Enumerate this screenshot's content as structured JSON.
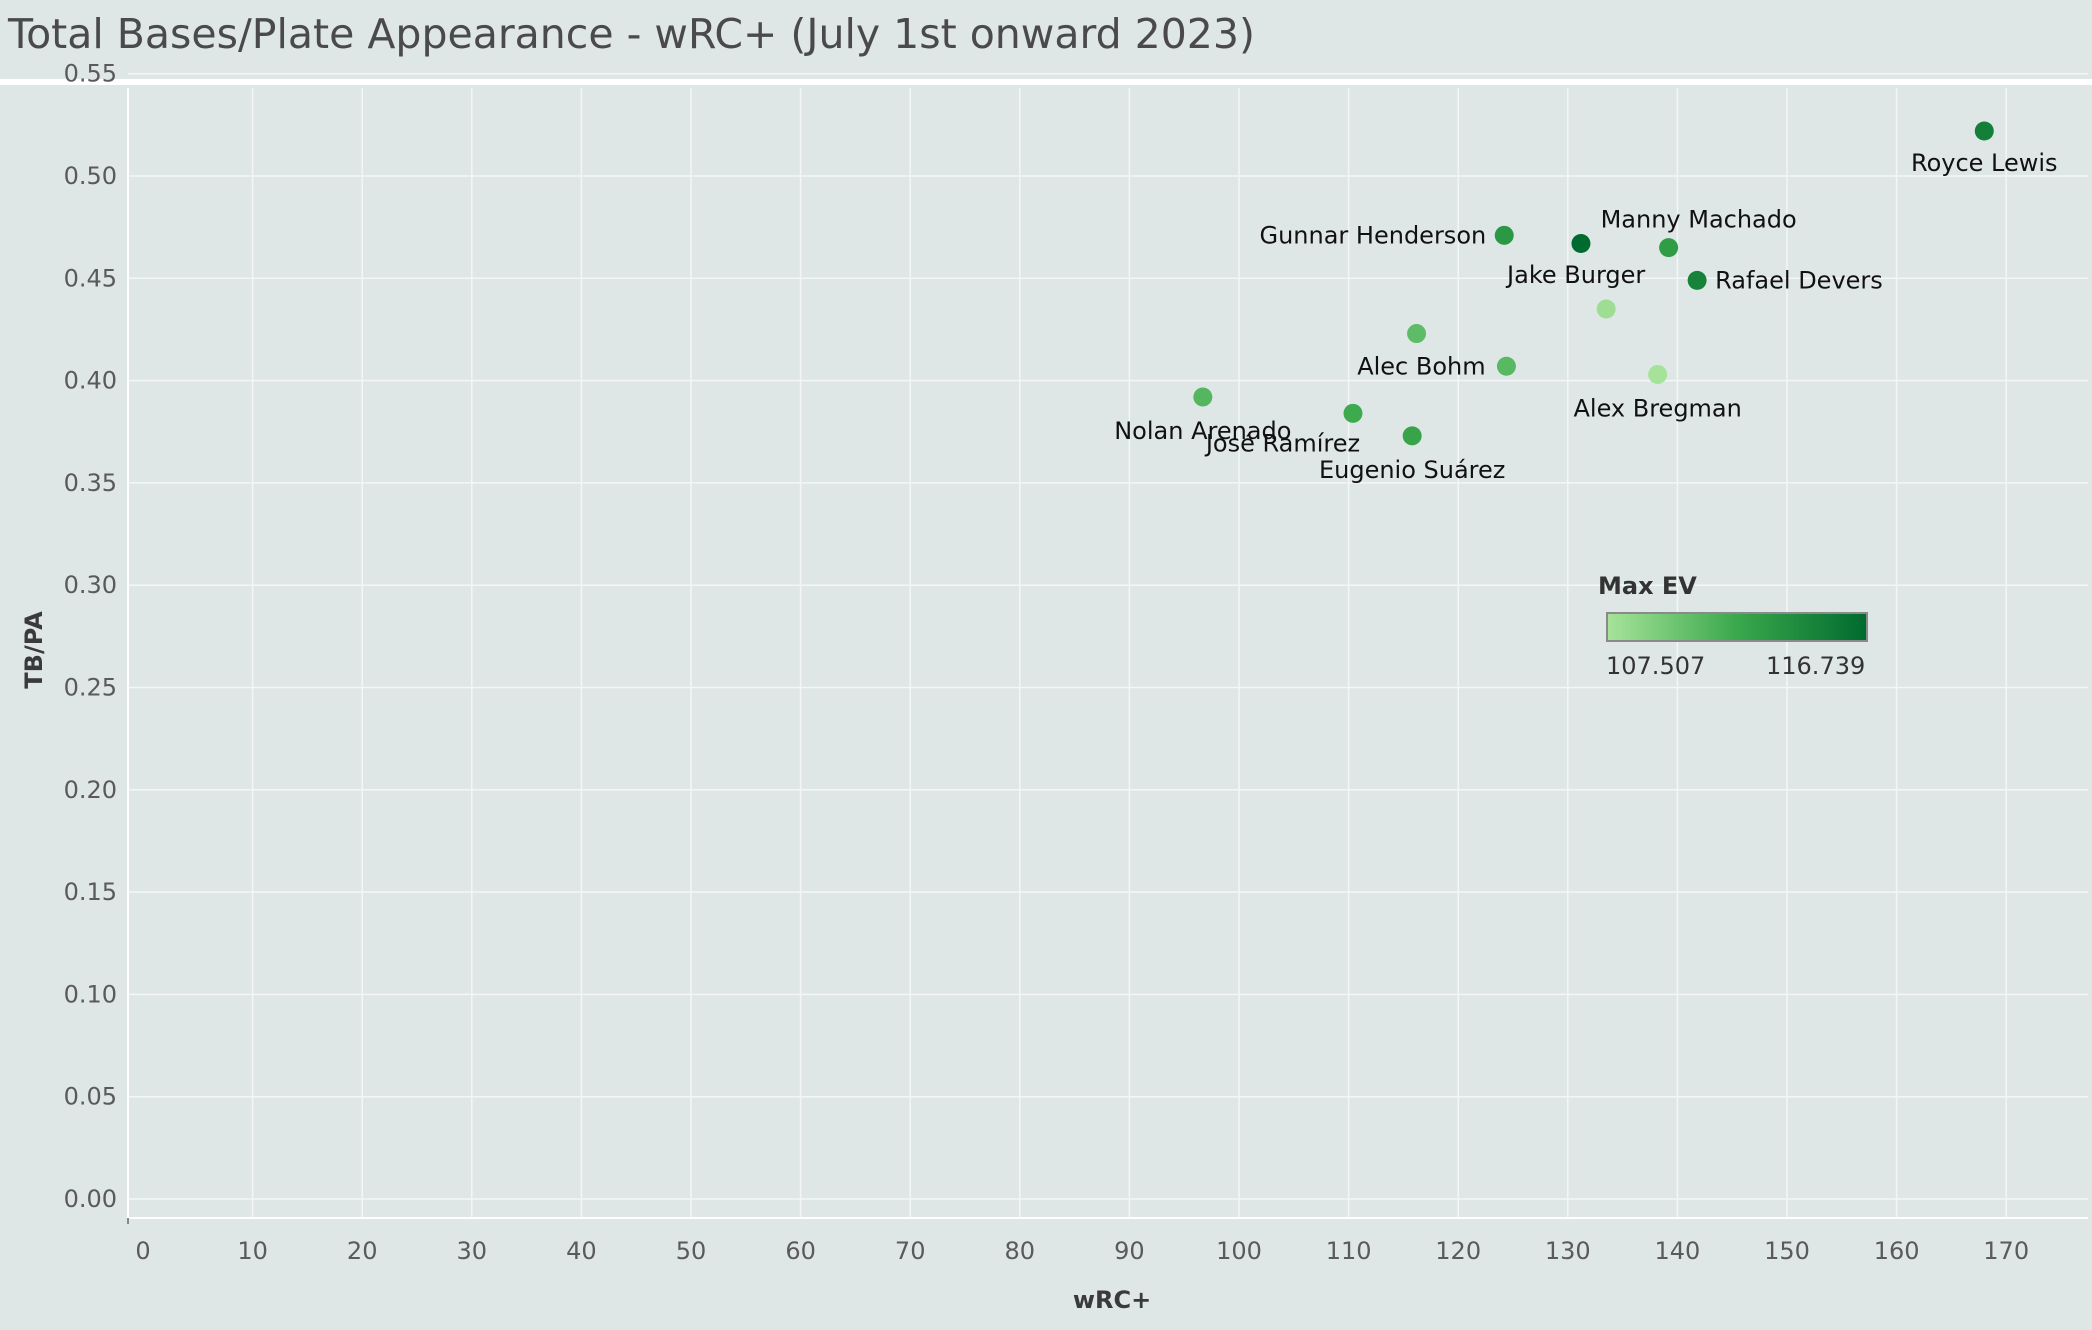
{
  "title": "Total Bases/Plate Appearance - wRC+ (July 1st onward 2023)",
  "legend": {
    "title": "Max EV",
    "min_label": "107.507",
    "max_label": "116.739",
    "min_value": 107.507,
    "max_value": 116.739,
    "color_low": "#a6e39a",
    "color_mid": "#3aa84c",
    "color_high": "#006b2f"
  },
  "colors": {
    "background": "#dfe7e6",
    "grid": "#f3f6f5"
  },
  "chart_data": {
    "type": "scatter",
    "title": "Total Bases/Plate Appearance - wRC+ (July 1st onward 2023)",
    "xlabel": "wRC+",
    "ylabel": "TB/PA",
    "xlim": [
      0,
      175
    ],
    "ylim": [
      0,
      0.56
    ],
    "xticks": [
      "0",
      "10",
      "20",
      "30",
      "40",
      "50",
      "60",
      "70",
      "80",
      "90",
      "100",
      "110",
      "120",
      "130",
      "140",
      "150",
      "160",
      "170"
    ],
    "yticks": [
      "0.00",
      "0.05",
      "0.10",
      "0.15",
      "0.20",
      "0.25",
      "0.30",
      "0.35",
      "0.40",
      "0.45",
      "0.50",
      "0.55"
    ],
    "grid": true,
    "color_field": "Max EV",
    "points": [
      {
        "label": "Royce Lewis",
        "x": 168,
        "y": 0.522,
        "max_ev": 115.2,
        "label_pos": "below-right"
      },
      {
        "label": "Gunnar Henderson",
        "x": 124.2,
        "y": 0.471,
        "max_ev": 113.3,
        "label_pos": "left"
      },
      {
        "label": "",
        "x": 131.2,
        "y": 0.467,
        "max_ev": 116.739,
        "label_pos": "none"
      },
      {
        "label": "Manny Machado",
        "x": 139.2,
        "y": 0.465,
        "max_ev": 113.0,
        "label_pos": "above"
      },
      {
        "label": "Rafael Devers",
        "x": 141.8,
        "y": 0.449,
        "max_ev": 115.0,
        "label_pos": "right"
      },
      {
        "label": "Jake Burger",
        "x": 133.5,
        "y": 0.435,
        "max_ev": 107.9,
        "label_pos": "above"
      },
      {
        "label": "",
        "x": 116.2,
        "y": 0.423,
        "max_ev": 110.6,
        "label_pos": "none"
      },
      {
        "label": "Alec Bohm",
        "x": 124.4,
        "y": 0.407,
        "max_ev": 110.8,
        "label_pos": "left"
      },
      {
        "label": "Alex Bregman",
        "x": 138.2,
        "y": 0.403,
        "max_ev": 107.507,
        "label_pos": "below"
      },
      {
        "label": "Nolan Arenado",
        "x": 96.7,
        "y": 0.392,
        "max_ev": 111.0,
        "label_pos": "below"
      },
      {
        "label": "José Ramírez",
        "x": 110.4,
        "y": 0.384,
        "max_ev": 112.0,
        "label_pos": "below-left"
      },
      {
        "label": "Eugenio Suárez",
        "x": 115.8,
        "y": 0.373,
        "max_ev": 112.4,
        "label_pos": "below"
      }
    ]
  }
}
